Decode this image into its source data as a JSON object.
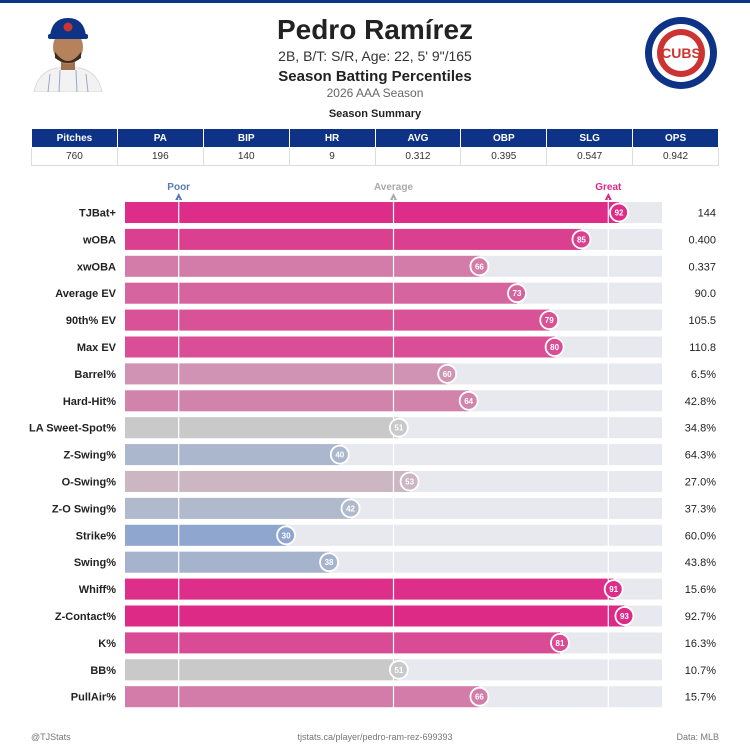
{
  "header": {
    "name": "Pedro Ramírez",
    "info": "2B, B/T: S/R, Age: 22, 5' 9\"/165",
    "subtitle": "Season Batting Percentiles",
    "season": "2026 AAA Season",
    "team_logo_text": "CUBS"
  },
  "summary": {
    "title": "Season Summary",
    "headers": [
      "Pitches",
      "PA",
      "BIP",
      "HR",
      "AVG",
      "OBP",
      "SLG",
      "OPS"
    ],
    "values": [
      "760",
      "196",
      "140",
      "9",
      "0.312",
      "0.395",
      "0.547",
      "0.942"
    ]
  },
  "colors": {
    "brand_blue": "#0e3386",
    "brand_red": "#cc3433",
    "great": "#de2a87",
    "average": "#c9c9c9",
    "poor": "#8fa6cf",
    "track": "#e8e8ef"
  },
  "chart_data": {
    "type": "bar",
    "orientation": "horizontal",
    "xlim": [
      0,
      100
    ],
    "scale_labels": [
      {
        "label": "Poor",
        "value": 10
      },
      {
        "label": "Average",
        "value": 50
      },
      {
        "label": "Great",
        "value": 90
      }
    ],
    "categories": [
      "TJBat+",
      "wOBA",
      "xwOBA",
      "Average EV",
      "90th% EV",
      "Max EV",
      "Barrel%",
      "Hard-Hit%",
      "LA Sweet-Spot%",
      "Z-Swing%",
      "O-Swing%",
      "Z-O Swing%",
      "Strike%",
      "Swing%",
      "Whiff%",
      "Z-Contact%",
      "K%",
      "BB%",
      "PullAir%"
    ],
    "percentiles": [
      92,
      85,
      66,
      73,
      79,
      80,
      60,
      64,
      51,
      40,
      53,
      42,
      30,
      38,
      91,
      93,
      81,
      51,
      66
    ],
    "stat_values": [
      "144",
      "0.400",
      "0.337",
      "90.0",
      "105.5",
      "110.8",
      "6.5%",
      "42.8%",
      "34.8%",
      "64.3%",
      "27.0%",
      "37.3%",
      "60.0%",
      "43.8%",
      "15.6%",
      "92.7%",
      "16.3%",
      "10.7%",
      "15.7%"
    ]
  },
  "footer": {
    "left": "@TJStats",
    "center": "tjstats.ca/player/pedro-ram-rez-699393",
    "right": "Data: MLB"
  }
}
